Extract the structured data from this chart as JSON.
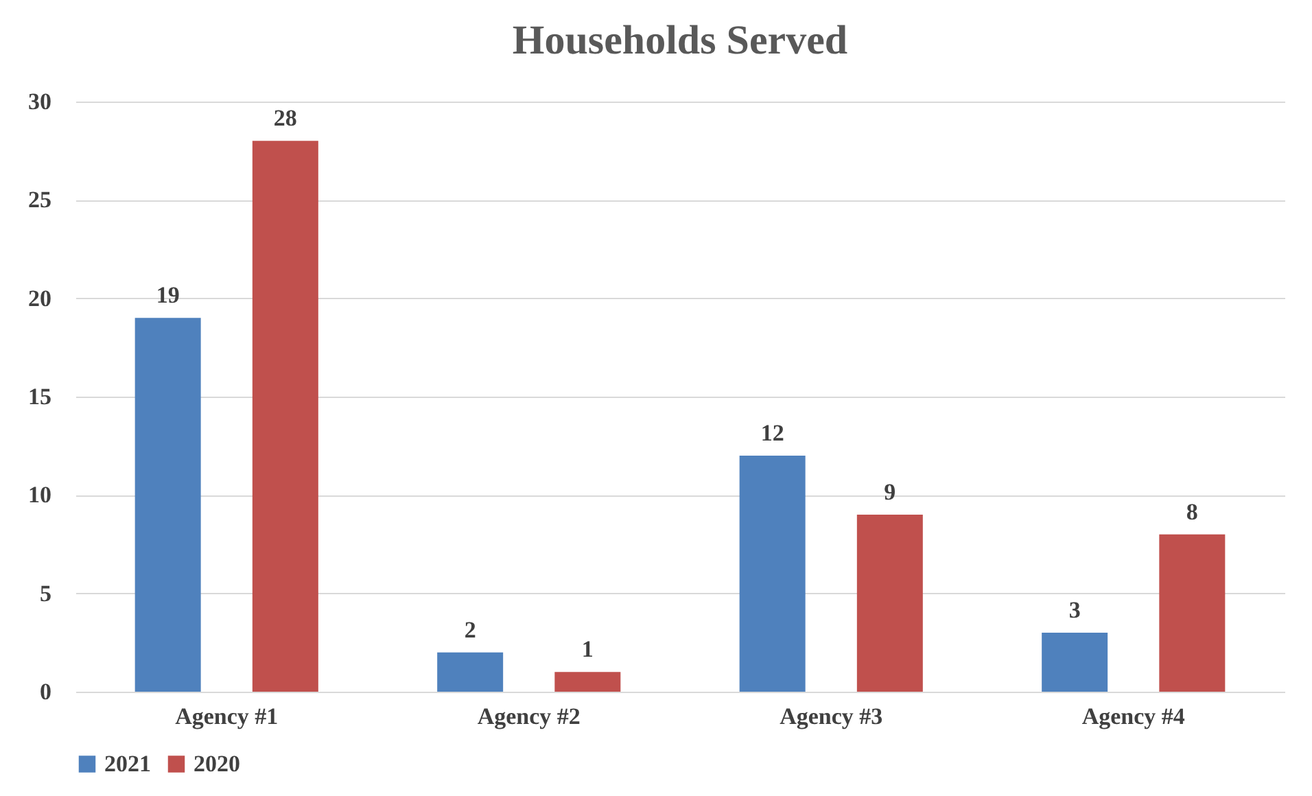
{
  "chart_data": {
    "type": "bar",
    "title": "Households Served",
    "categories": [
      "Agency #1",
      "Agency #2",
      "Agency #3",
      "Agency #4"
    ],
    "series": [
      {
        "name": "2021",
        "color": "#4f81bd",
        "values": [
          19,
          2,
          12,
          3
        ]
      },
      {
        "name": "2020",
        "color": "#c0504d",
        "values": [
          28,
          1,
          9,
          8
        ]
      }
    ],
    "ylim": [
      0,
      30
    ],
    "yticks": [
      0,
      5,
      10,
      15,
      20,
      25,
      30
    ],
    "grid": "y",
    "legend": "bottom",
    "data_labels": true
  }
}
